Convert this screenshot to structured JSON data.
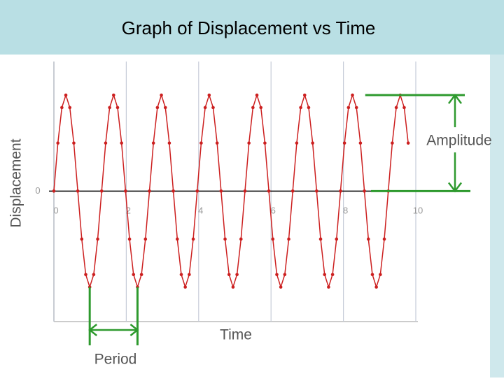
{
  "chart_data": {
    "type": "line",
    "title": "Graph of Displacement vs Time",
    "x_label": "Time",
    "y_label": "Displacement",
    "annotations": {
      "amplitude": "Amplitude",
      "period": "Period"
    },
    "color": "#cc1f1f",
    "annotation_color": "#2e9a2e",
    "grid": true,
    "xlim": [
      0,
      10
    ],
    "xticks": [
      0,
      2,
      4,
      6,
      8,
      10
    ],
    "ylim": [
      -1.36,
      1.35
    ],
    "yticks": [
      0
    ],
    "x": [
      0,
      0.11,
      0.22,
      0.33,
      0.44,
      0.55,
      0.66,
      0.77,
      0.88,
      0.99,
      1.1,
      1.21,
      1.32,
      1.43,
      1.54,
      1.65,
      1.76,
      1.87,
      1.98,
      2.09,
      2.2,
      2.31,
      2.42,
      2.53,
      2.64,
      2.75,
      2.86,
      2.97,
      3.08,
      3.19,
      3.3,
      3.41,
      3.52,
      3.63,
      3.74,
      3.85,
      3.96,
      4.07,
      4.18,
      4.29,
      4.4,
      4.51,
      4.62,
      4.73,
      4.84,
      4.95,
      5.06,
      5.17,
      5.28,
      5.39,
      5.5,
      5.61,
      5.72,
      5.83,
      5.94,
      6.05,
      6.16,
      6.27,
      6.38,
      6.49,
      6.6,
      6.71,
      6.82,
      6.93,
      7.04,
      7.15,
      7.26,
      7.37,
      7.48,
      7.59,
      7.7,
      7.81,
      7.92,
      8.03,
      8.14,
      8.25,
      8.36,
      8.47,
      8.58,
      8.69,
      8.8,
      8.91,
      9.02,
      9.13,
      9.24,
      9.35,
      9.46,
      9.57,
      9.68,
      9.79
    ],
    "values": [
      0,
      0.5,
      0.87,
      1,
      0.87,
      0.5,
      0,
      -0.5,
      -0.87,
      -1,
      -0.87,
      -0.5,
      0,
      0.5,
      0.87,
      1,
      0.87,
      0.5,
      0,
      -0.5,
      -0.87,
      -1,
      -0.87,
      -0.5,
      0,
      0.5,
      0.87,
      1,
      0.87,
      0.5,
      0,
      -0.5,
      -0.87,
      -1,
      -0.87,
      -0.5,
      0,
      0.5,
      0.87,
      1,
      0.87,
      0.5,
      0,
      -0.5,
      -0.87,
      -1,
      -0.87,
      -0.5,
      0,
      0.5,
      0.87,
      1,
      0.87,
      0.5,
      0,
      -0.5,
      -0.87,
      -1,
      -0.87,
      -0.5,
      0,
      0.5,
      0.87,
      1,
      0.87,
      0.5,
      0,
      -0.5,
      -0.87,
      -1,
      -0.87,
      -0.5,
      0,
      0.5,
      0.87,
      1,
      0.87,
      0.5,
      0,
      -0.5,
      -0.87,
      -1,
      -0.87,
      -0.5,
      0,
      0.5,
      0.87,
      1,
      0.87,
      0.5
    ]
  }
}
